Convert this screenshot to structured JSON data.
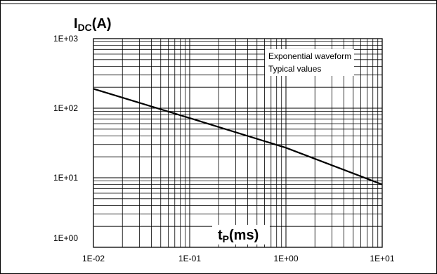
{
  "chart_data": {
    "type": "line",
    "x_scale": "log",
    "y_scale": "log",
    "xlim": [
      0.01,
      10
    ],
    "ylim": [
      1,
      1000
    ],
    "x_ticks": [
      "1E-02",
      "1E-01",
      "1E+00",
      "1E+01"
    ],
    "y_ticks": [
      "1E+00",
      "1E+01",
      "1E+02",
      "1E+03"
    ],
    "ylabel_main": "I",
    "ylabel_sub": "DC",
    "ylabel_unit": "(A)",
    "xlabel_main": "t",
    "xlabel_sub": "P",
    "xlabel_unit": "(ms)",
    "annotations": [
      "Exponential waveform",
      "Typical values"
    ],
    "grid": true,
    "series": [
      {
        "x": [
          0.01,
          0.1,
          1,
          10
        ],
        "y": [
          190,
          72,
          27,
          8
        ]
      }
    ]
  }
}
